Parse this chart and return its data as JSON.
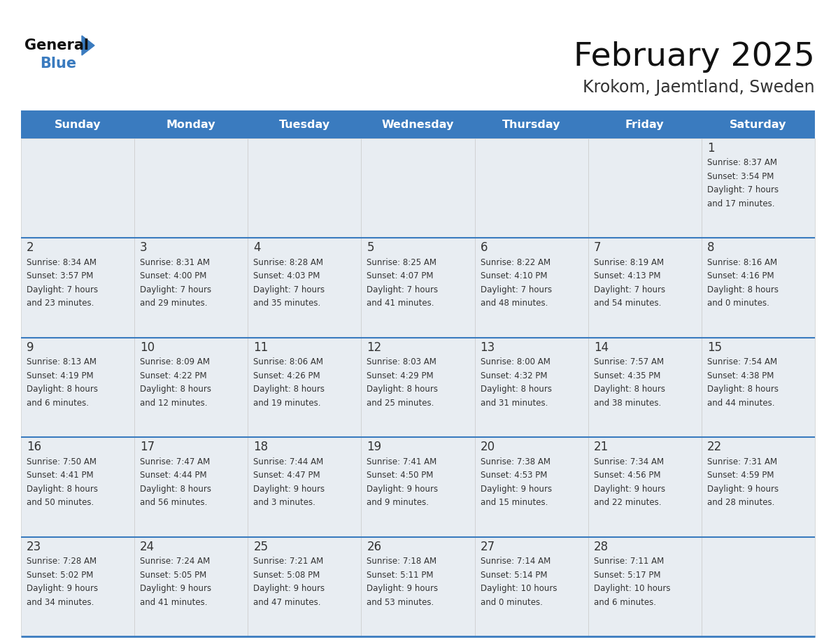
{
  "title": "February 2025",
  "subtitle": "Krokom, Jaemtland, Sweden",
  "header_bg_color": "#3a7bbf",
  "header_text_color": "#ffffff",
  "cell_bg_color": "#e8edf2",
  "border_color": "#3a7bbf",
  "day_number_color": "#333333",
  "text_color": "#333333",
  "days_of_week": [
    "Sunday",
    "Monday",
    "Tuesday",
    "Wednesday",
    "Thursday",
    "Friday",
    "Saturday"
  ],
  "weeks": [
    [
      {
        "day": null,
        "sunrise": null,
        "sunset": null,
        "daylight": null
      },
      {
        "day": null,
        "sunrise": null,
        "sunset": null,
        "daylight": null
      },
      {
        "day": null,
        "sunrise": null,
        "sunset": null,
        "daylight": null
      },
      {
        "day": null,
        "sunrise": null,
        "sunset": null,
        "daylight": null
      },
      {
        "day": null,
        "sunrise": null,
        "sunset": null,
        "daylight": null
      },
      {
        "day": null,
        "sunrise": null,
        "sunset": null,
        "daylight": null
      },
      {
        "day": 1,
        "sunrise": "8:37 AM",
        "sunset": "3:54 PM",
        "daylight": "7 hours\nand 17 minutes."
      }
    ],
    [
      {
        "day": 2,
        "sunrise": "8:34 AM",
        "sunset": "3:57 PM",
        "daylight": "7 hours\nand 23 minutes."
      },
      {
        "day": 3,
        "sunrise": "8:31 AM",
        "sunset": "4:00 PM",
        "daylight": "7 hours\nand 29 minutes."
      },
      {
        "day": 4,
        "sunrise": "8:28 AM",
        "sunset": "4:03 PM",
        "daylight": "7 hours\nand 35 minutes."
      },
      {
        "day": 5,
        "sunrise": "8:25 AM",
        "sunset": "4:07 PM",
        "daylight": "7 hours\nand 41 minutes."
      },
      {
        "day": 6,
        "sunrise": "8:22 AM",
        "sunset": "4:10 PM",
        "daylight": "7 hours\nand 48 minutes."
      },
      {
        "day": 7,
        "sunrise": "8:19 AM",
        "sunset": "4:13 PM",
        "daylight": "7 hours\nand 54 minutes."
      },
      {
        "day": 8,
        "sunrise": "8:16 AM",
        "sunset": "4:16 PM",
        "daylight": "8 hours\nand 0 minutes."
      }
    ],
    [
      {
        "day": 9,
        "sunrise": "8:13 AM",
        "sunset": "4:19 PM",
        "daylight": "8 hours\nand 6 minutes."
      },
      {
        "day": 10,
        "sunrise": "8:09 AM",
        "sunset": "4:22 PM",
        "daylight": "8 hours\nand 12 minutes."
      },
      {
        "day": 11,
        "sunrise": "8:06 AM",
        "sunset": "4:26 PM",
        "daylight": "8 hours\nand 19 minutes."
      },
      {
        "day": 12,
        "sunrise": "8:03 AM",
        "sunset": "4:29 PM",
        "daylight": "8 hours\nand 25 minutes."
      },
      {
        "day": 13,
        "sunrise": "8:00 AM",
        "sunset": "4:32 PM",
        "daylight": "8 hours\nand 31 minutes."
      },
      {
        "day": 14,
        "sunrise": "7:57 AM",
        "sunset": "4:35 PM",
        "daylight": "8 hours\nand 38 minutes."
      },
      {
        "day": 15,
        "sunrise": "7:54 AM",
        "sunset": "4:38 PM",
        "daylight": "8 hours\nand 44 minutes."
      }
    ],
    [
      {
        "day": 16,
        "sunrise": "7:50 AM",
        "sunset": "4:41 PM",
        "daylight": "8 hours\nand 50 minutes."
      },
      {
        "day": 17,
        "sunrise": "7:47 AM",
        "sunset": "4:44 PM",
        "daylight": "8 hours\nand 56 minutes."
      },
      {
        "day": 18,
        "sunrise": "7:44 AM",
        "sunset": "4:47 PM",
        "daylight": "9 hours\nand 3 minutes."
      },
      {
        "day": 19,
        "sunrise": "7:41 AM",
        "sunset": "4:50 PM",
        "daylight": "9 hours\nand 9 minutes."
      },
      {
        "day": 20,
        "sunrise": "7:38 AM",
        "sunset": "4:53 PM",
        "daylight": "9 hours\nand 15 minutes."
      },
      {
        "day": 21,
        "sunrise": "7:34 AM",
        "sunset": "4:56 PM",
        "daylight": "9 hours\nand 22 minutes."
      },
      {
        "day": 22,
        "sunrise": "7:31 AM",
        "sunset": "4:59 PM",
        "daylight": "9 hours\nand 28 minutes."
      }
    ],
    [
      {
        "day": 23,
        "sunrise": "7:28 AM",
        "sunset": "5:02 PM",
        "daylight": "9 hours\nand 34 minutes."
      },
      {
        "day": 24,
        "sunrise": "7:24 AM",
        "sunset": "5:05 PM",
        "daylight": "9 hours\nand 41 minutes."
      },
      {
        "day": 25,
        "sunrise": "7:21 AM",
        "sunset": "5:08 PM",
        "daylight": "9 hours\nand 47 minutes."
      },
      {
        "day": 26,
        "sunrise": "7:18 AM",
        "sunset": "5:11 PM",
        "daylight": "9 hours\nand 53 minutes."
      },
      {
        "day": 27,
        "sunrise": "7:14 AM",
        "sunset": "5:14 PM",
        "daylight": "10 hours\nand 0 minutes."
      },
      {
        "day": 28,
        "sunrise": "7:11 AM",
        "sunset": "5:17 PM",
        "daylight": "10 hours\nand 6 minutes."
      },
      {
        "day": null,
        "sunrise": null,
        "sunset": null,
        "daylight": null
      }
    ]
  ]
}
